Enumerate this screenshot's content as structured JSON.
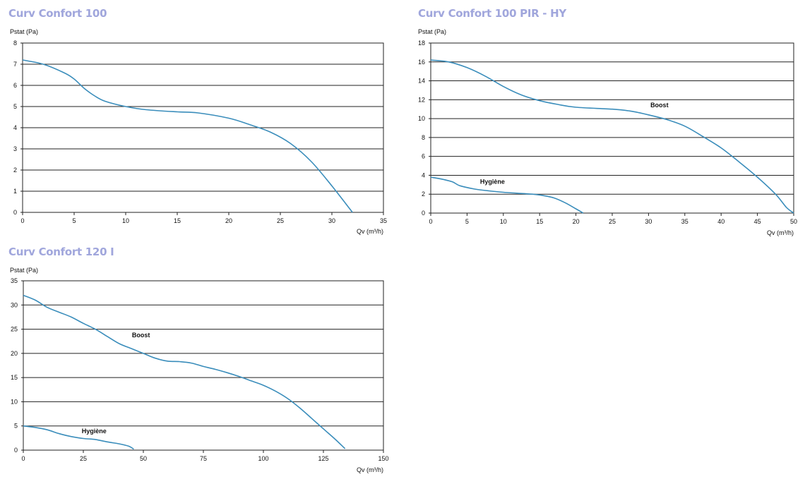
{
  "theme": {
    "title_color": "#a0a6dc",
    "line_color": "#3a8dbb",
    "grid_color": "#222222"
  },
  "chart_data": [
    {
      "id": "c1",
      "type": "line",
      "title": "Curv Confort 100",
      "ylabel": "Pstat (Pa)",
      "xlabel": "Qv (m³/h)",
      "xlim": [
        0,
        35
      ],
      "ylim": [
        0,
        8
      ],
      "xticks": [
        0,
        5,
        10,
        15,
        20,
        25,
        30,
        35
      ],
      "yticks": [
        0,
        1,
        2,
        3,
        4,
        5,
        6,
        7,
        8
      ],
      "grid": "horizontal",
      "series": [
        {
          "label": "",
          "label_at": null,
          "points": [
            [
              0,
              7.2
            ],
            [
              2,
              7.0
            ],
            [
              4,
              6.6
            ],
            [
              5,
              6.3
            ],
            [
              6,
              5.85
            ],
            [
              7,
              5.5
            ],
            [
              8,
              5.25
            ],
            [
              10,
              5.0
            ],
            [
              12,
              4.85
            ],
            [
              15,
              4.75
            ],
            [
              17,
              4.7
            ],
            [
              20,
              4.45
            ],
            [
              22,
              4.15
            ],
            [
              24,
              3.8
            ],
            [
              26,
              3.25
            ],
            [
              28,
              2.4
            ],
            [
              30,
              1.25
            ],
            [
              32,
              0
            ]
          ]
        }
      ]
    },
    {
      "id": "c2",
      "type": "line",
      "title": "Curv Confort 100 PIR - HY",
      "ylabel": "Pstat (Pa)",
      "xlabel": "Qv (m³/h)",
      "xlim": [
        0,
        50
      ],
      "ylim": [
        0,
        18
      ],
      "xticks": [
        0,
        5,
        10,
        15,
        20,
        25,
        30,
        35,
        40,
        45,
        50
      ],
      "yticks": [
        0,
        2,
        4,
        6,
        8,
        10,
        12,
        14,
        16,
        18
      ],
      "grid": "horizontal",
      "series": [
        {
          "label": "Boost",
          "label_at": [
            31.5,
            11.2
          ],
          "points": [
            [
              0,
              16.2
            ],
            [
              2.5,
              16.0
            ],
            [
              5,
              15.4
            ],
            [
              7.5,
              14.5
            ],
            [
              10,
              13.4
            ],
            [
              12.5,
              12.5
            ],
            [
              15,
              11.9
            ],
            [
              17.5,
              11.5
            ],
            [
              20,
              11.2
            ],
            [
              25,
              11.0
            ],
            [
              27.5,
              10.8
            ],
            [
              30,
              10.4
            ],
            [
              32.5,
              9.9
            ],
            [
              35,
              9.2
            ],
            [
              37.5,
              8.1
            ],
            [
              40,
              6.9
            ],
            [
              42.5,
              5.4
            ],
            [
              45,
              3.8
            ],
            [
              47.5,
              2.0
            ],
            [
              49,
              0.6
            ],
            [
              50,
              0
            ]
          ]
        },
        {
          "label": "Hygiène",
          "label_at": [
            8.5,
            3.1
          ],
          "points": [
            [
              0,
              3.8
            ],
            [
              1.5,
              3.6
            ],
            [
              3,
              3.3
            ],
            [
              4,
              2.9
            ],
            [
              6,
              2.55
            ],
            [
              8,
              2.35
            ],
            [
              10,
              2.2
            ],
            [
              12,
              2.1
            ],
            [
              14,
              2.0
            ],
            [
              15.5,
              1.85
            ],
            [
              17,
              1.6
            ],
            [
              18.5,
              1.1
            ],
            [
              20,
              0.45
            ],
            [
              21,
              0
            ]
          ]
        }
      ]
    },
    {
      "id": "c3",
      "type": "line",
      "title": "Curv Confort 120 I",
      "ylabel": "Pstat (Pa)",
      "xlabel": "Qv (m³/h)",
      "xlim": [
        0,
        150
      ],
      "ylim": [
        0,
        35
      ],
      "xticks": [
        0,
        25,
        50,
        75,
        100,
        125,
        150
      ],
      "yticks": [
        0,
        5,
        10,
        15,
        20,
        25,
        30,
        35
      ],
      "grid": "horizontal",
      "series": [
        {
          "label": "Boost",
          "label_at": [
            49,
            23.3
          ],
          "points": [
            [
              0,
              32
            ],
            [
              5,
              31
            ],
            [
              10,
              29.5
            ],
            [
              15,
              28.5
            ],
            [
              20,
              27.5
            ],
            [
              25,
              26.2
            ],
            [
              30,
              25
            ],
            [
              35,
              23.5
            ],
            [
              40,
              22
            ],
            [
              45,
              21
            ],
            [
              50,
              20
            ],
            [
              55,
              19
            ],
            [
              60,
              18.4
            ],
            [
              65,
              18.3
            ],
            [
              70,
              18.0
            ],
            [
              75,
              17.3
            ],
            [
              80,
              16.7
            ],
            [
              85,
              16.0
            ],
            [
              90,
              15.2
            ],
            [
              95,
              14.3
            ],
            [
              100,
              13.4
            ],
            [
              105,
              12.2
            ],
            [
              110,
              10.7
            ],
            [
              115,
              8.8
            ],
            [
              120,
              6.6
            ],
            [
              125,
              4.4
            ],
            [
              130,
              2.2
            ],
            [
              134,
              0.3
            ]
          ]
        },
        {
          "label": "Hygiène",
          "label_at": [
            29.5,
            3.5
          ],
          "points": [
            [
              0,
              5
            ],
            [
              5,
              4.7
            ],
            [
              10,
              4.2
            ],
            [
              15,
              3.4
            ],
            [
              20,
              2.8
            ],
            [
              25,
              2.4
            ],
            [
              30,
              2.2
            ],
            [
              35,
              1.7
            ],
            [
              40,
              1.3
            ],
            [
              44,
              0.8
            ],
            [
              46,
              0.2
            ]
          ]
        }
      ]
    }
  ]
}
